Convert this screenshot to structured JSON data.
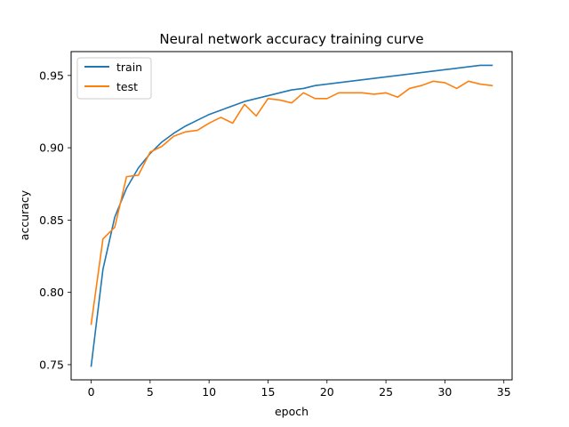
{
  "chart_data": {
    "type": "line",
    "title": "Neural network accuracy training curve",
    "xlabel": "epoch",
    "ylabel": "accuracy",
    "xlim": [
      -1.7,
      35.7
    ],
    "ylim": [
      0.7395,
      0.9665
    ],
    "xticks": [
      0,
      5,
      10,
      15,
      20,
      25,
      30,
      35
    ],
    "yticks": [
      0.75,
      0.8,
      0.85,
      0.9,
      0.95
    ],
    "ytick_labels": [
      "0.75",
      "0.80",
      "0.85",
      "0.90",
      "0.95"
    ],
    "grid": false,
    "legend_position": "top-left",
    "x": [
      0,
      1,
      2,
      3,
      4,
      5,
      6,
      7,
      8,
      9,
      10,
      11,
      12,
      13,
      14,
      15,
      16,
      17,
      18,
      19,
      20,
      21,
      22,
      23,
      24,
      25,
      26,
      27,
      28,
      29,
      30,
      31,
      32,
      33,
      34
    ],
    "series": [
      {
        "name": "train",
        "color": "#1f77b4",
        "values": [
          0.749,
          0.816,
          0.852,
          0.872,
          0.886,
          0.896,
          0.904,
          0.91,
          0.915,
          0.919,
          0.923,
          0.926,
          0.929,
          0.932,
          0.934,
          0.936,
          0.938,
          0.94,
          0.941,
          0.943,
          0.944,
          0.945,
          0.946,
          0.947,
          0.948,
          0.949,
          0.95,
          0.951,
          0.952,
          0.953,
          0.954,
          0.955,
          0.956,
          0.957,
          0.957
        ]
      },
      {
        "name": "test",
        "color": "#ff7f0e",
        "values": [
          0.778,
          0.837,
          0.845,
          0.88,
          0.881,
          0.897,
          0.901,
          0.908,
          0.911,
          0.912,
          0.917,
          0.921,
          0.917,
          0.93,
          0.922,
          0.934,
          0.933,
          0.931,
          0.938,
          0.934,
          0.934,
          0.938,
          0.938,
          0.938,
          0.937,
          0.938,
          0.935,
          0.941,
          0.943,
          0.946,
          0.945,
          0.941,
          0.946,
          0.944,
          0.943
        ]
      }
    ]
  }
}
